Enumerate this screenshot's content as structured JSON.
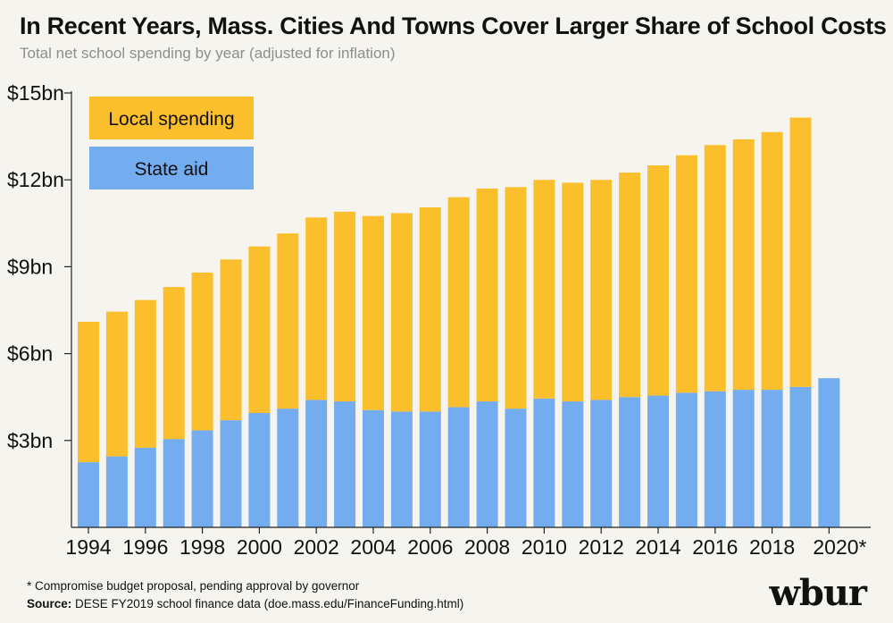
{
  "title": "In Recent Years, Mass. Cities And Towns Cover Larger Share of School Costs",
  "subtitle": "Total net school spending by year (adjusted for inflation)",
  "footnote": "* Compromise budget proposal, pending approval by governor",
  "source_label": "Source:",
  "source_text": "DESE FY2019 school finance data (doe.mass.edu/FinanceFunding.html)",
  "logo": "wbur",
  "colors": {
    "local": "#fbbf2d",
    "state": "#73acef",
    "axis": "#222222"
  },
  "chart_data": {
    "type": "bar",
    "stacked": true,
    "title": "In Recent Years, Mass. Cities And Towns Cover Larger Share of School Costs",
    "subtitle": "Total net school spending by year (adjusted for inflation)",
    "ylim": [
      0,
      15
    ],
    "yticks": [
      {
        "value": 3,
        "label": "$3bn"
      },
      {
        "value": 6,
        "label": "$6bn"
      },
      {
        "value": 9,
        "label": "$9bn"
      },
      {
        "value": 12,
        "label": "$12bn"
      },
      {
        "value": 15,
        "label": "$15bn"
      }
    ],
    "categories": [
      "1994",
      "1995",
      "1996",
      "1997",
      "1998",
      "1999",
      "2000",
      "2001",
      "2002",
      "2003",
      "2004",
      "2005",
      "2006",
      "2007",
      "2008",
      "2009",
      "2010",
      "2011",
      "2012",
      "2013",
      "2014",
      "2015",
      "2016",
      "2017",
      "2018",
      "2019",
      "2020*"
    ],
    "xticks": [
      "1994",
      "1996",
      "1998",
      "2000",
      "2002",
      "2004",
      "2006",
      "2008",
      "2010",
      "2012",
      "2014",
      "2016",
      "2018",
      "2020*"
    ],
    "series": [
      {
        "name": "State aid",
        "color": "#73acef",
        "values": [
          2.25,
          2.45,
          2.75,
          3.05,
          3.35,
          3.7,
          3.95,
          4.1,
          4.4,
          4.35,
          4.05,
          4.0,
          4.0,
          4.15,
          4.35,
          4.1,
          4.45,
          4.35,
          4.4,
          4.5,
          4.55,
          4.65,
          4.7,
          4.75,
          4.75,
          4.85,
          5.15
        ]
      },
      {
        "name": "Local spending",
        "color": "#fbbf2d",
        "values": [
          4.85,
          5.0,
          5.1,
          5.25,
          5.45,
          5.55,
          5.75,
          6.05,
          6.3,
          6.55,
          6.7,
          6.85,
          7.05,
          7.25,
          7.35,
          7.65,
          7.55,
          7.55,
          7.6,
          7.75,
          7.95,
          8.2,
          8.5,
          8.65,
          8.9,
          9.3,
          null
        ]
      }
    ],
    "legend": [
      "Local spending",
      "State aid"
    ]
  }
}
